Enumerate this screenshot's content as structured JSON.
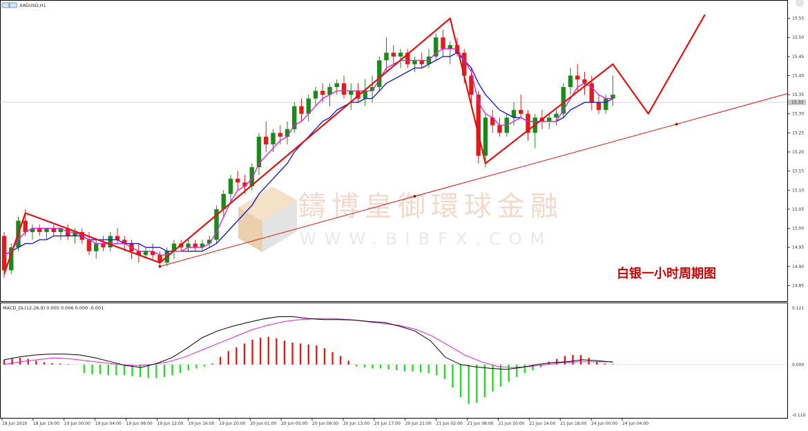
{
  "window": {
    "symbol_title": "XAGUSD,H1",
    "close_icon": "close-icon"
  },
  "watermark": {
    "chinese": "鑄博皇御環球金融",
    "url": "WWW.BIBFX.COM",
    "logo_icon": "bibfx-logo-icon"
  },
  "caption": "白银一小时周期图",
  "colors": {
    "bull": "#1a8a1a",
    "bear": "#e31b1b",
    "ma_fast": "#e020e0",
    "ma_slow": "#1a1ad0",
    "zigzag": "#e31010",
    "trendline": "#e31010",
    "macd_line": "#000000",
    "signal_line": "#e020e0",
    "hist_pos": "#e31b1b",
    "hist_neg": "#22dd22"
  },
  "price_axis": {
    "ticks": [
      "15.55",
      "15.50",
      "15.45",
      "15.40",
      "15.35",
      "15.30",
      "15.25",
      "15.20",
      "15.15",
      "15.10",
      "15.05",
      "15.00",
      "14.95",
      "14.90",
      "14.85"
    ],
    "current_price": "15.33",
    "ylim": [
      14.82,
      15.58
    ]
  },
  "time_axis": {
    "labels": [
      "18 Jun 2019",
      "18 Jun 19:00",
      "19 Jun 00:00",
      "19 Jun 04:00",
      "19 Jun 08:00",
      "19 Jun 12:00",
      "19 Jun 16:00",
      "19 Jun 20:00",
      "20 Jun 01:00",
      "20 Jun 05:00",
      "20 Jun 09:00",
      "20 Jun 13:00",
      "20 Jun 17:00",
      "20 Jun 21:00",
      "21 Jun 02:00",
      "21 Jun 06:00",
      "21 Jun 10:00",
      "21 Jun 14:00",
      "21 Jun 18:00",
      "24 Jun 00:00",
      "24 Jun 04:00"
    ]
  },
  "macd": {
    "label": "MACD_DL(12,26,9) 0.005 0.006 0.000 -0.001",
    "ticks": [
      "0.121",
      "0.000",
      "-0.110"
    ],
    "ylim": [
      -0.11,
      0.121
    ]
  },
  "chart_data": [
    {
      "type": "candlestick",
      "title": "XAGUSD,H1",
      "ylim": [
        14.82,
        15.58
      ],
      "candles": [
        [
          14.98,
          14.99,
          14.87,
          14.89
        ],
        [
          14.89,
          14.96,
          14.88,
          14.95
        ],
        [
          14.95,
          15.03,
          14.94,
          15.02
        ],
        [
          15.02,
          15.05,
          14.98,
          14.99
        ],
        [
          14.99,
          15.01,
          14.97,
          15.0
        ],
        [
          15.0,
          15.01,
          14.98,
          14.99
        ],
        [
          14.99,
          15.0,
          14.97,
          15.0
        ],
        [
          15.0,
          15.01,
          14.98,
          14.99
        ],
        [
          14.99,
          15.0,
          14.97,
          15.0
        ],
        [
          15.0,
          15.01,
          14.97,
          14.98
        ],
        [
          14.98,
          15.0,
          14.96,
          14.99
        ],
        [
          14.99,
          15.0,
          14.96,
          14.97
        ],
        [
          14.97,
          14.99,
          14.93,
          14.94
        ],
        [
          14.94,
          14.97,
          14.92,
          14.96
        ],
        [
          14.96,
          14.98,
          14.94,
          14.95
        ],
        [
          14.95,
          14.99,
          14.94,
          14.98
        ],
        [
          14.98,
          15.0,
          14.96,
          14.97
        ],
        [
          14.97,
          14.98,
          14.94,
          14.96
        ],
        [
          14.96,
          14.97,
          14.92,
          14.94
        ],
        [
          14.94,
          14.96,
          14.91,
          14.93
        ],
        [
          14.93,
          14.95,
          14.92,
          14.94
        ],
        [
          14.94,
          14.96,
          14.92,
          14.93
        ],
        [
          14.93,
          14.94,
          14.9,
          14.91
        ],
        [
          14.91,
          14.95,
          14.9,
          14.94
        ],
        [
          14.94,
          14.97,
          14.92,
          14.96
        ],
        [
          14.96,
          14.97,
          14.94,
          14.95
        ],
        [
          14.95,
          14.97,
          14.94,
          14.96
        ],
        [
          14.96,
          14.97,
          14.94,
          14.95
        ],
        [
          14.95,
          14.97,
          14.94,
          14.96
        ],
        [
          14.96,
          14.98,
          14.95,
          14.97
        ],
        [
          14.97,
          15.06,
          14.96,
          15.05
        ],
        [
          15.05,
          15.1,
          15.03,
          15.09
        ],
        [
          15.09,
          15.14,
          15.07,
          15.13
        ],
        [
          15.13,
          15.15,
          15.1,
          15.12
        ],
        [
          15.12,
          15.14,
          15.09,
          15.11
        ],
        [
          15.11,
          15.17,
          15.1,
          15.16
        ],
        [
          15.16,
          15.25,
          15.14,
          15.24
        ],
        [
          15.24,
          15.28,
          15.2,
          15.22
        ],
        [
          15.22,
          15.26,
          15.2,
          15.25
        ],
        [
          15.25,
          15.27,
          15.22,
          15.24
        ],
        [
          15.24,
          15.28,
          15.22,
          15.26
        ],
        [
          15.26,
          15.33,
          15.25,
          15.32
        ],
        [
          15.32,
          15.34,
          15.28,
          15.3
        ],
        [
          15.3,
          15.35,
          15.28,
          15.34
        ],
        [
          15.34,
          15.37,
          15.32,
          15.36
        ],
        [
          15.36,
          15.38,
          15.33,
          15.35
        ],
        [
          15.35,
          15.38,
          15.32,
          15.37
        ],
        [
          15.37,
          15.39,
          15.35,
          15.38
        ],
        [
          15.38,
          15.4,
          15.34,
          15.35
        ],
        [
          15.35,
          15.38,
          15.31,
          15.36
        ],
        [
          15.36,
          15.38,
          15.33,
          15.34
        ],
        [
          15.34,
          15.39,
          15.32,
          15.36
        ],
        [
          15.36,
          15.4,
          15.33,
          15.37
        ],
        [
          15.37,
          15.45,
          15.36,
          15.44
        ],
        [
          15.44,
          15.5,
          15.41,
          15.46
        ],
        [
          15.46,
          15.48,
          15.43,
          15.45
        ],
        [
          15.45,
          15.47,
          15.42,
          15.46
        ],
        [
          15.46,
          15.47,
          15.42,
          15.43
        ],
        [
          15.43,
          15.45,
          15.41,
          15.44
        ],
        [
          15.44,
          15.46,
          15.42,
          15.43
        ],
        [
          15.43,
          15.47,
          15.42,
          15.45
        ],
        [
          15.45,
          15.51,
          15.44,
          15.5
        ],
        [
          15.5,
          15.52,
          15.45,
          15.47
        ],
        [
          15.47,
          15.49,
          15.43,
          15.48
        ],
        [
          15.48,
          15.5,
          15.45,
          15.46
        ],
        [
          15.46,
          15.47,
          15.38,
          15.4
        ],
        [
          15.4,
          15.42,
          15.32,
          15.35
        ],
        [
          15.35,
          15.36,
          15.17,
          15.19
        ],
        [
          15.19,
          15.3,
          15.16,
          15.29
        ],
        [
          15.29,
          15.31,
          15.25,
          15.27
        ],
        [
          15.27,
          15.29,
          15.24,
          15.25
        ],
        [
          15.25,
          15.3,
          15.24,
          15.29
        ],
        [
          15.29,
          15.33,
          15.27,
          15.31
        ],
        [
          15.31,
          15.35,
          15.29,
          15.3
        ],
        [
          15.3,
          15.31,
          15.23,
          15.25
        ],
        [
          15.25,
          15.3,
          15.21,
          15.29
        ],
        [
          15.29,
          15.31,
          15.26,
          15.28
        ],
        [
          15.28,
          15.3,
          15.26,
          15.29
        ],
        [
          15.29,
          15.31,
          15.27,
          15.3
        ],
        [
          15.3,
          15.38,
          15.29,
          15.37
        ],
        [
          15.37,
          15.42,
          15.35,
          15.4
        ],
        [
          15.4,
          15.43,
          15.36,
          15.39
        ],
        [
          15.39,
          15.41,
          15.35,
          15.38
        ],
        [
          15.38,
          15.4,
          15.31,
          15.33
        ],
        [
          15.33,
          15.35,
          15.3,
          15.31
        ],
        [
          15.31,
          15.35,
          15.3,
          15.34
        ],
        [
          15.34,
          15.4,
          15.32,
          15.35
        ]
      ],
      "ma_fast": [
        14.93,
        14.94,
        14.97,
        14.99,
        15.0,
        15.0,
        15.0,
        15.0,
        15.0,
        14.99,
        14.99,
        14.98,
        14.97,
        14.96,
        14.96,
        14.96,
        14.96,
        14.96,
        14.95,
        14.94,
        14.94,
        14.94,
        14.93,
        14.93,
        14.94,
        14.94,
        14.95,
        14.95,
        14.95,
        14.96,
        14.99,
        15.03,
        15.07,
        15.1,
        15.11,
        15.13,
        15.17,
        15.19,
        15.21,
        15.23,
        15.24,
        15.27,
        15.28,
        15.3,
        15.32,
        15.34,
        15.35,
        15.36,
        15.36,
        15.36,
        15.36,
        15.36,
        15.36,
        15.39,
        15.42,
        15.43,
        15.44,
        15.44,
        15.44,
        15.44,
        15.44,
        15.46,
        15.47,
        15.47,
        15.47,
        15.44,
        15.41,
        15.33,
        15.3,
        15.29,
        15.27,
        15.27,
        15.28,
        15.29,
        15.28,
        15.28,
        15.28,
        15.28,
        15.28,
        15.31,
        15.34,
        15.37,
        15.38,
        15.37,
        15.35,
        15.34,
        15.34
      ],
      "ma_slow": [
        14.93,
        14.94,
        14.95,
        14.96,
        14.96,
        14.97,
        14.97,
        14.98,
        14.98,
        14.98,
        14.98,
        14.98,
        14.97,
        14.97,
        14.97,
        14.97,
        14.97,
        14.96,
        14.96,
        14.96,
        14.95,
        14.95,
        14.95,
        14.94,
        14.94,
        14.94,
        14.94,
        14.94,
        14.94,
        14.95,
        14.96,
        14.98,
        15.0,
        15.02,
        15.04,
        15.06,
        15.09,
        15.11,
        15.13,
        15.15,
        15.17,
        15.2,
        15.22,
        15.24,
        15.26,
        15.28,
        15.29,
        15.31,
        15.32,
        15.33,
        15.33,
        15.34,
        15.34,
        15.36,
        15.38,
        15.39,
        15.4,
        15.41,
        15.42,
        15.42,
        15.43,
        15.44,
        15.45,
        15.45,
        15.46,
        15.44,
        15.42,
        15.38,
        15.35,
        15.33,
        15.31,
        15.3,
        15.29,
        15.29,
        15.28,
        15.28,
        15.28,
        15.28,
        15.28,
        15.29,
        15.31,
        15.32,
        15.33,
        15.33,
        15.33,
        15.33,
        15.34
      ],
      "zigzag": [
        [
          0,
          14.88
        ],
        [
          3,
          15.04
        ],
        [
          22,
          14.91
        ],
        [
          63,
          15.55
        ],
        [
          68,
          15.17
        ],
        [
          86,
          15.43
        ],
        [
          91,
          15.3
        ],
        [
          99,
          15.56
        ]
      ],
      "trendline": [
        [
          22,
          14.9
        ],
        [
          116,
          15.38
        ]
      ]
    },
    {
      "type": "macd",
      "title": "MACD_DL(12,26,9)",
      "ylim": [
        -0.11,
        0.121
      ],
      "histogram": [
        0.01,
        0.012,
        0.014,
        0.012,
        0.008,
        0.005,
        0.003,
        0.002,
        0.001,
        0,
        -0.018,
        -0.02,
        -0.02,
        -0.022,
        -0.022,
        -0.022,
        -0.024,
        -0.026,
        -0.028,
        -0.028,
        -0.026,
        -0.022,
        -0.018,
        -0.012,
        -0.008,
        -0.004,
        0.002,
        0.016,
        0.028,
        0.036,
        0.044,
        0.052,
        0.056,
        0.058,
        0.055,
        0.05,
        0.046,
        0.044,
        0.042,
        0.04,
        0.034,
        0.026,
        0.018,
        0.008,
        -0.004,
        -0.006,
        -0.008,
        -0.008,
        -0.01,
        -0.012,
        -0.014,
        -0.014,
        -0.016,
        -0.018,
        -0.022,
        -0.03,
        -0.048,
        -0.068,
        -0.082,
        -0.08,
        -0.068,
        -0.056,
        -0.046,
        -0.036,
        -0.026,
        -0.018,
        -0.012,
        -0.006,
        0.006,
        0.012,
        0.018,
        0.02,
        0.02,
        0.014,
        0.006,
        0.002,
        0.001
      ],
      "macd_line": [
        0.01,
        0.016,
        0.02,
        0.022,
        0.022,
        0.02,
        0.014,
        0.006,
        -0.002,
        -0.006,
        0.002,
        0.014,
        0.034,
        0.056,
        0.07,
        0.08,
        0.088,
        0.095,
        0.1,
        0.1,
        0.096,
        0.094,
        0.094,
        0.093,
        0.09,
        0.088,
        0.08,
        0.07,
        0.05,
        0.015,
        0.0,
        -0.005,
        -0.008,
        -0.01,
        -0.006,
        0.0,
        0.004,
        0.006,
        0.01,
        0.008,
        0.005
      ],
      "signal_line": [
        0.0,
        0.006,
        0.01,
        0.014,
        0.012,
        0.008,
        0.004,
        0.0,
        -0.002,
        0.0,
        0.006,
        0.016,
        0.03,
        0.044,
        0.058,
        0.072,
        0.082,
        0.09,
        0.094,
        0.096,
        0.096,
        0.094,
        0.09,
        0.086,
        0.082,
        0.074,
        0.06,
        0.04,
        0.02,
        0.006,
        -0.004,
        -0.006,
        -0.004,
        0.0,
        0.004,
        0.006,
        0.006,
        0.006
      ]
    }
  ]
}
